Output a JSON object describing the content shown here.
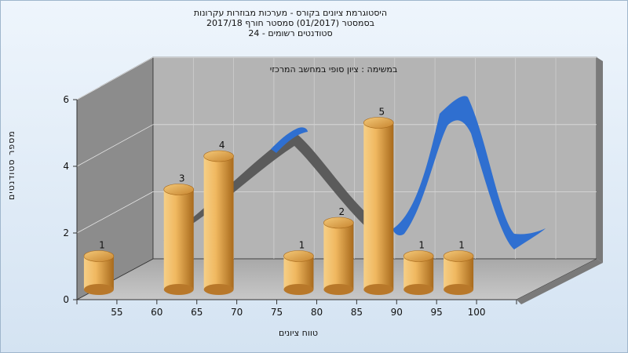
{
  "chart_title": {
    "line1": "היסטוגרמת ציונים בקורס - מערכות מבוזרות עקרונות",
    "line2": "בסמסטר  (01/2017)  סמסטר חורף 2017/18",
    "line3": "סטודנטים רשומים - 24"
  },
  "chart_data": {
    "type": "bar",
    "subtitle": "במשימה : ציון סופי במחשב המרכזי",
    "xlabel": "טווח ציונים",
    "ylabel": "מספר סטודנטים",
    "categories": [
      "55",
      "60",
      "65",
      "70",
      "75",
      "80",
      "85",
      "90",
      "95",
      "100"
    ],
    "values": [
      1,
      0,
      3,
      4,
      0,
      1,
      2,
      5,
      1,
      1
    ],
    "y_ticks": [
      "0",
      "2",
      "4",
      "6"
    ],
    "ylim": [
      0,
      6
    ],
    "grid": true,
    "legend": "none"
  },
  "colors": {
    "bar_light": "#f6cf86",
    "bar_mid": "#e5a34a",
    "bar_dark": "#a86a1c",
    "curve_front": "#2f6fd0",
    "curve_back": "#5b5b5b",
    "plot_back": "#b4b4b4",
    "plot_side": "#8c8c8c"
  }
}
